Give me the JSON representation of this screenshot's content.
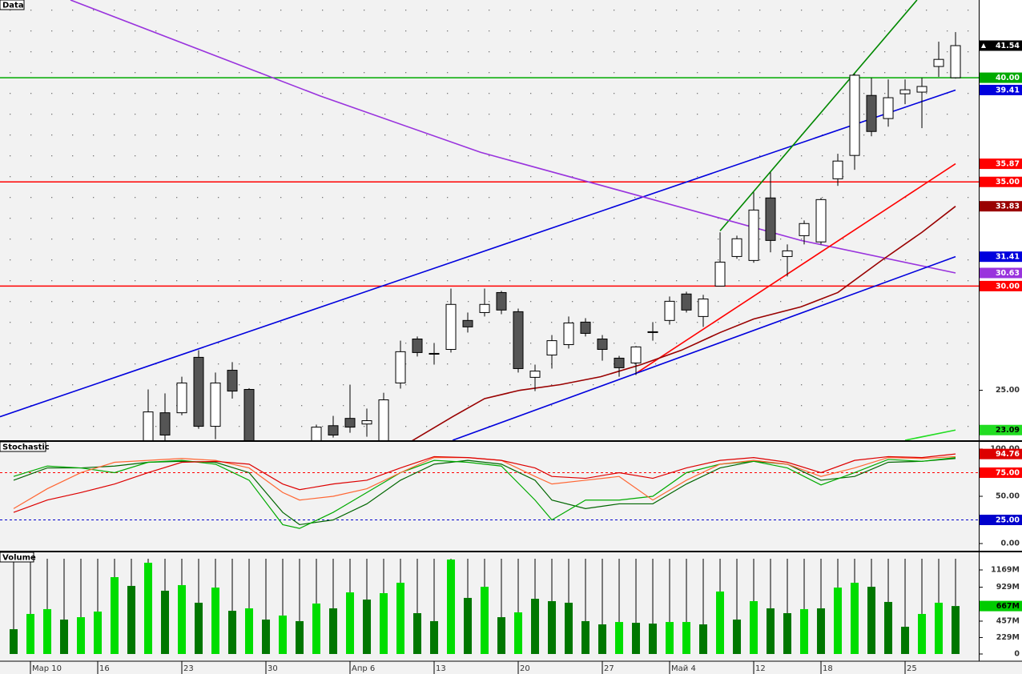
{
  "chart_data": [
    {
      "type": "candlestick",
      "title": "Data",
      "x": [
        0,
        1,
        2,
        3,
        4,
        5,
        6,
        7,
        8,
        9,
        10,
        11,
        12,
        13,
        14,
        15,
        16,
        17,
        18,
        19,
        20,
        21,
        22,
        23,
        24,
        25,
        26,
        27,
        28,
        29,
        30,
        31,
        32,
        33,
        34,
        35,
        36,
        37,
        38,
        39,
        40,
        41,
        42,
        43,
        44,
        45,
        46,
        47,
        48,
        49,
        50,
        51,
        52,
        53,
        54,
        55,
        56
      ],
      "open": [
        null,
        null,
        null,
        null,
        null,
        null,
        null,
        null,
        22.4,
        23.92,
        23.92,
        26.58,
        23.27,
        25.96,
        25.04,
        null,
        null,
        null,
        22.5,
        23.3,
        23.65,
        23.38,
        22.5,
        25.35,
        27.46,
        26.73,
        26.96,
        28.35,
        28.73,
        29.69,
        28.77,
        25.62,
        26.69,
        27.19,
        28.27,
        27.46,
        26.54,
        26.31,
        27.77,
        28.35,
        29.62,
        28.54,
        30.0,
        31.42,
        31.23,
        34.23,
        31.42,
        32.42,
        32.12,
        35.15,
        36.27,
        39.15,
        38.04,
        39.23,
        39.31,
        40.54,
        40.0
      ],
      "high": [
        null,
        null,
        null,
        null,
        null,
        null,
        null,
        null,
        25.04,
        24.85,
        25.65,
        26.92,
        25.85,
        26.35,
        25.1,
        null,
        null,
        null,
        23.35,
        23.77,
        25.27,
        24.12,
        24.88,
        27.38,
        27.58,
        27.27,
        29.88,
        28.73,
        29.88,
        29.77,
        28.92,
        26.23,
        27.65,
        28.54,
        28.46,
        27.65,
        26.65,
        27.12,
        28.27,
        29.5,
        29.73,
        29.58,
        32.58,
        32.42,
        34.5,
        35.46,
        32.0,
        33.15,
        34.23,
        36.35,
        40.19,
        40.0,
        39.92,
        39.92,
        40.0,
        41.73,
        42.19
      ],
      "low": [
        null,
        null,
        null,
        null,
        null,
        null,
        null,
        null,
        22.0,
        22.5,
        23.8,
        23.15,
        22.65,
        24.6,
        22.0,
        null,
        null,
        null,
        22.3,
        22.73,
        22.96,
        22.77,
        22.3,
        25.08,
        26.62,
        26.23,
        26.81,
        27.77,
        28.54,
        28.65,
        25.85,
        24.96,
        26.04,
        27.0,
        27.58,
        26.42,
        25.65,
        25.73,
        27.38,
        28.15,
        28.73,
        28.04,
        30.0,
        31.31,
        31.12,
        31.62,
        30.46,
        32.0,
        32.0,
        34.81,
        35.58,
        37.19,
        37.65,
        38.73,
        37.58,
        40.04,
        39.96
      ],
      "close": [
        null,
        null,
        null,
        null,
        null,
        null,
        null,
        null,
        23.96,
        22.85,
        25.35,
        23.27,
        25.35,
        24.96,
        22.3,
        null,
        null,
        null,
        23.23,
        22.85,
        23.23,
        23.54,
        24.54,
        26.85,
        26.81,
        26.77,
        29.12,
        28.04,
        29.12,
        28.85,
        26.04,
        25.92,
        27.38,
        28.23,
        27.73,
        26.96,
        26.08,
        27.08,
        27.81,
        29.27,
        28.85,
        29.38,
        31.15,
        32.27,
        33.65,
        32.19,
        31.69,
        33.0,
        34.15,
        36.0,
        40.12,
        37.42,
        39.04,
        39.42,
        39.58,
        40.88,
        41.54
      ],
      "up_color": "#ffffff",
      "down_color": "#555555",
      "xlim": [
        -0.81,
        57.38
      ],
      "ylim": [
        22.6,
        43.73
      ],
      "yticks": [
        {
          "value": 25,
          "label": "25.00"
        }
      ],
      "last": {
        "value": 41.54,
        "label": "41.54",
        "color": "#000000"
      },
      "levels": [
        {
          "value": 40,
          "label": "40.00",
          "color": "#00aa00"
        },
        {
          "value": 35,
          "label": "35.00",
          "color": "#ff0000"
        },
        {
          "value": 30,
          "label": "30.00",
          "color": "#ff0000"
        }
      ],
      "lines": [
        {
          "color": "#0000dd",
          "points": [
            [
              -0.81,
              23.73
            ],
            [
              56,
              39.41
            ]
          ],
          "label": "39.41"
        },
        {
          "color": "#008800",
          "points": [
            [
              42,
              32.65
            ],
            [
              53.71,
              43.73
            ]
          ]
        },
        {
          "color": "#22dd22",
          "points": [
            [
              53,
              22.6
            ],
            [
              56,
              23.09
            ]
          ],
          "label": "23.09"
        },
        {
          "color": "#9933dd",
          "points": [
            [
              3.38,
              43.73
            ],
            [
              18.24,
              39.12
            ],
            [
              27.76,
              36.42
            ],
            [
              37.29,
              34.31
            ],
            [
              46.81,
              32.19
            ],
            [
              56,
              30.63
            ]
          ],
          "label": "30.63"
        },
        {
          "color": "#ff0000",
          "points": [
            [
              37,
              25.81
            ],
            [
              56,
              35.87
            ]
          ],
          "label": "35.87"
        },
        {
          "color": "#0000dd",
          "points": [
            [
              26.1,
              22.6
            ],
            [
              56,
              31.41
            ]
          ],
          "label": "31.41"
        },
        {
          "color": "#990000",
          "points": [
            [
              23.7,
              22.58
            ],
            [
              26.1,
              23.73
            ],
            [
              28,
              24.6
            ],
            [
              30.1,
              25.0
            ],
            [
              32.5,
              25.27
            ],
            [
              34.9,
              25.65
            ],
            [
              37.3,
              26.23
            ],
            [
              39.7,
              26.92
            ],
            [
              42,
              27.77
            ],
            [
              44,
              28.42
            ],
            [
              46.8,
              29.0
            ],
            [
              49,
              29.69
            ],
            [
              51.6,
              31.23
            ],
            [
              54,
              32.58
            ],
            [
              56,
              33.83
            ]
          ],
          "label": "33.83"
        }
      ]
    },
    {
      "type": "line",
      "title": "Stochastic",
      "x": [
        0,
        2,
        4,
        6,
        8,
        10,
        12,
        14,
        16,
        17,
        19,
        21,
        23,
        25,
        27,
        29,
        31,
        32,
        34,
        36,
        38,
        40,
        42,
        44,
        46,
        48,
        50,
        52,
        54,
        56
      ],
      "xlim": [
        -0.81,
        57.38
      ],
      "ylim": [
        -7.6,
        107.6
      ],
      "yticks": [
        {
          "value": 0,
          "label": "0.00"
        },
        {
          "value": 50,
          "label": "50.00"
        },
        {
          "value": 100,
          "label": "100.00"
        }
      ],
      "levels": [
        {
          "value": 75,
          "label": "75.00",
          "color": "#ff0000"
        },
        {
          "value": 25,
          "label": "25.00",
          "color": "#0000cc"
        }
      ],
      "series": [
        {
          "color": "#006600",
          "values": [
            67,
            80,
            80,
            82,
            86,
            87,
            86,
            75,
            33,
            20,
            25,
            42,
            67,
            84,
            88,
            84,
            67,
            46,
            37,
            42,
            42,
            63,
            80,
            87,
            84,
            67,
            71,
            86,
            87,
            90
          ]
        },
        {
          "color": "#00aa00",
          "values": [
            71,
            82,
            80,
            75,
            86,
            88,
            84,
            67,
            20,
            16,
            33,
            54,
            75,
            88,
            86,
            82,
            46,
            25,
            46,
            46,
            50,
            75,
            84,
            87,
            80,
            62,
            75,
            89,
            87,
            91
          ]
        },
        {
          "color": "#ff6633",
          "values": [
            37,
            58,
            75,
            86,
            88,
            90,
            88,
            80,
            54,
            46,
            50,
            58,
            75,
            91,
            91,
            88,
            71,
            63,
            67,
            71,
            46,
            67,
            84,
            88,
            84,
            71,
            80,
            91,
            90,
            92
          ]
        },
        {
          "color": "#dd0000",
          "values": [
            33,
            46,
            54,
            63,
            75,
            86,
            87,
            84,
            63,
            57,
            63,
            67,
            80,
            92,
            91,
            88,
            80,
            71,
            69,
            75,
            69,
            80,
            88,
            91,
            86,
            75,
            88,
            92,
            91,
            94.76
          ],
          "last_label": "94.76"
        }
      ]
    },
    {
      "type": "bar",
      "title": "Volume",
      "x": [
        0,
        1,
        2,
        3,
        4,
        5,
        6,
        7,
        8,
        9,
        10,
        11,
        12,
        13,
        14,
        15,
        16,
        17,
        18,
        19,
        20,
        21,
        22,
        23,
        24,
        25,
        26,
        27,
        28,
        29,
        30,
        31,
        32,
        33,
        34,
        35,
        36,
        37,
        38,
        39,
        40,
        41,
        42,
        43,
        44,
        45,
        46,
        47,
        48,
        49,
        50,
        51,
        52,
        53,
        54,
        55,
        56
      ],
      "values": [
        345,
        557,
        624,
        479,
        512,
        590,
        1069,
        947,
        1269,
        880,
        958,
        713,
        924,
        601,
        635,
        479,
        535,
        457,
        702,
        635,
        857,
        757,
        846,
        991,
        568,
        457,
        1314,
        780,
        935,
        512,
        579,
        768,
        735,
        713,
        457,
        412,
        445,
        434,
        423,
        445,
        445,
        412,
        869,
        479,
        735,
        635,
        568,
        624,
        635,
        924,
        991,
        935,
        724,
        379,
        557,
        713,
        667
      ],
      "colors": [
        "#007700",
        "#00dd00",
        "#00dd00",
        "#007700",
        "#00dd00",
        "#00dd00",
        "#00dd00",
        "#007700",
        "#00dd00",
        "#007700",
        "#00dd00",
        "#007700",
        "#00dd00",
        "#007700",
        "#00dd00",
        "#007700",
        "#00dd00",
        "#007700",
        "#00dd00",
        "#007700",
        "#00dd00",
        "#007700",
        "#00dd00",
        "#00dd00",
        "#007700",
        "#007700",
        "#00dd00",
        "#007700",
        "#00dd00",
        "#007700",
        "#00dd00",
        "#007700",
        "#007700",
        "#007700",
        "#007700",
        "#007700",
        "#00dd00",
        "#007700",
        "#007700",
        "#00dd00",
        "#00dd00",
        "#007700",
        "#00dd00",
        "#007700",
        "#00dd00",
        "#007700",
        "#007700",
        "#00dd00",
        "#007700",
        "#00dd00",
        "#00dd00",
        "#007700",
        "#007700",
        "#007700",
        "#00dd00",
        "#00dd00",
        "#007700"
      ],
      "last": {
        "value": 667,
        "label": "667M",
        "color": "#00cc00"
      },
      "xlim": [
        -0.81,
        57.38
      ],
      "ylim": [
        -89,
        1414
      ],
      "yticks": [
        {
          "value": 0,
          "label": "0"
        },
        {
          "value": 229,
          "label": "229M"
        },
        {
          "value": 457,
          "label": "457M"
        },
        {
          "value": 929,
          "label": "929M"
        },
        {
          "value": 1169,
          "label": "1169M"
        }
      ],
      "xticks": [
        {
          "value": 1,
          "label": "Мар 10"
        },
        {
          "value": 5,
          "label": "16"
        },
        {
          "value": 10,
          "label": "23"
        },
        {
          "value": 15,
          "label": "30"
        },
        {
          "value": 20,
          "label": "Апр 6"
        },
        {
          "value": 25,
          "label": "13"
        },
        {
          "value": 30,
          "label": "20"
        },
        {
          "value": 35,
          "label": "27"
        },
        {
          "value": 39,
          "label": "Май 4"
        },
        {
          "value": 44,
          "label": "12"
        },
        {
          "value": 48,
          "label": "18"
        },
        {
          "value": 53,
          "label": "25"
        }
      ]
    }
  ]
}
